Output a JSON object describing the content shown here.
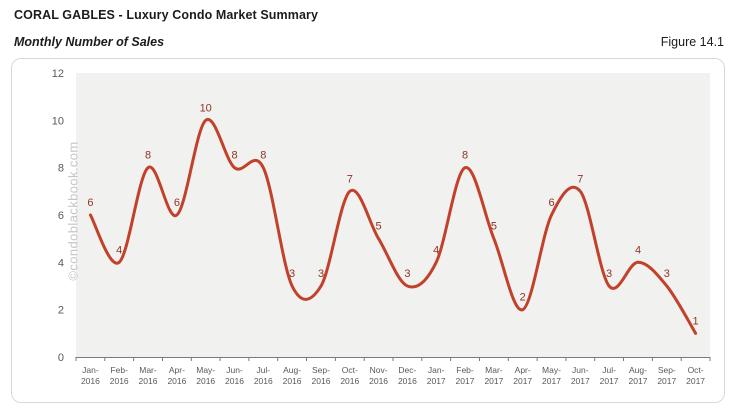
{
  "page": {
    "title": "CORAL GABLES - Luxury Condo Market Summary",
    "subtitle": "Monthly Number of Sales",
    "figure_label": "Figure 14.1",
    "watermark": "©condoblackbook.com"
  },
  "chart_data": {
    "type": "line",
    "title": "Monthly Number of Sales",
    "xlabel": "",
    "ylabel": "",
    "categories": [
      "Jan-2016",
      "Feb-2016",
      "Mar-2016",
      "Apr-2016",
      "May-2016",
      "Jun-2016",
      "Jul-2016",
      "Aug-2016",
      "Sep-2016",
      "Oct-2016",
      "Nov-2016",
      "Dec-2016",
      "Jan-2017",
      "Feb-2017",
      "Mar-2017",
      "Apr-2017",
      "May-2017",
      "Jun-2017",
      "Jul-2017",
      "Aug-2017",
      "Sep-2017",
      "Oct-2017"
    ],
    "values": [
      6,
      4,
      8,
      6,
      10,
      8,
      8,
      3,
      3,
      7,
      5,
      3,
      4,
      8,
      5,
      2,
      6,
      7,
      3,
      4,
      3,
      1
    ],
    "ylim": [
      0,
      12
    ],
    "yticks": [
      0,
      2,
      4,
      6,
      8,
      10,
      12
    ],
    "grid": false,
    "legend": false,
    "smooth": true,
    "data_labels": true,
    "colors": {
      "line": "#c2412b",
      "data_label": "#8c3626",
      "plot_background": "#f1f1ef",
      "axis": "#7a7a7a",
      "tick_label": "#595959"
    }
  }
}
